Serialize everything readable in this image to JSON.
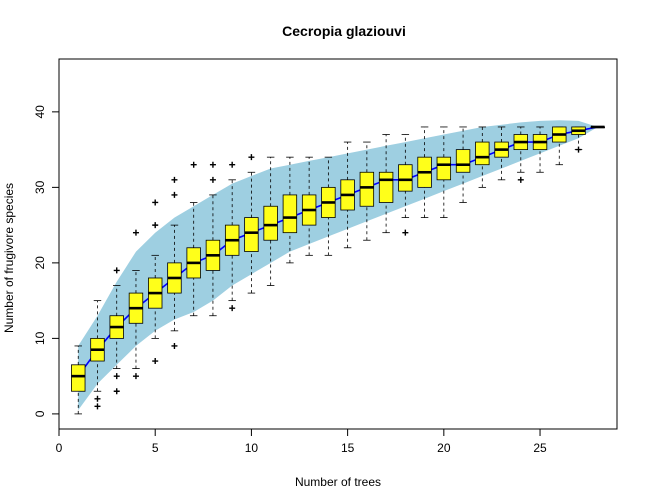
{
  "chart_data": {
    "type": "box",
    "title": "Cecropia glaziouvi",
    "xlabel": "Number of trees",
    "ylabel": "Number of frugivore species",
    "xlim": [
      0,
      29
    ],
    "ylim": [
      -2,
      47
    ],
    "x_ticks": [
      0,
      5,
      10,
      15,
      20,
      25
    ],
    "y_ticks": [
      0,
      10,
      20,
      30,
      40
    ],
    "grid": false,
    "colors": {
      "band": "#9ecfe1",
      "box": "#ffff1a",
      "median_line": "#0000ff"
    },
    "band": {
      "x": [
        1,
        2,
        3,
        4,
        5,
        6,
        7,
        8,
        9,
        10,
        11,
        12,
        13,
        14,
        15,
        16,
        17,
        18,
        19,
        20,
        21,
        22,
        23,
        24,
        25,
        26,
        27,
        28
      ],
      "lower": [
        0.5,
        4,
        6.5,
        9,
        11,
        12.5,
        13.5,
        15,
        17,
        18.5,
        20,
        21.5,
        22.5,
        23.5,
        24.5,
        25.5,
        26.5,
        27.5,
        28.5,
        29.5,
        30.5,
        31.5,
        32.5,
        33.5,
        34.5,
        35.5,
        36.5,
        38
      ],
      "upper": [
        9,
        13,
        17.5,
        21.5,
        24,
        26,
        27.5,
        29,
        30.5,
        31.5,
        32.5,
        33,
        33.5,
        34,
        34.5,
        35,
        35.5,
        36,
        36.5,
        37,
        37.5,
        38,
        38.3,
        38.6,
        38.8,
        38.9,
        38.8,
        38
      ]
    },
    "boxes": [
      {
        "x": 1,
        "whislo": 0,
        "q1": 3,
        "med": 5,
        "q3": 6.5,
        "whishi": 9,
        "fliers": []
      },
      {
        "x": 2,
        "whislo": 3,
        "q1": 7,
        "med": 8.5,
        "q3": 10,
        "whishi": 15,
        "fliers": [
          1,
          2
        ]
      },
      {
        "x": 3,
        "whislo": 6,
        "q1": 10,
        "med": 11.5,
        "q3": 13,
        "whishi": 17,
        "fliers": [
          3,
          5,
          19
        ]
      },
      {
        "x": 4,
        "whislo": 6,
        "q1": 12,
        "med": 14,
        "q3": 16,
        "whishi": 19,
        "fliers": [
          5,
          24
        ]
      },
      {
        "x": 5,
        "whislo": 10,
        "q1": 14,
        "med": 16,
        "q3": 18,
        "whishi": 21,
        "fliers": [
          7,
          25,
          28
        ]
      },
      {
        "x": 6,
        "whislo": 11,
        "q1": 16,
        "med": 18,
        "q3": 20,
        "whishi": 25,
        "fliers": [
          9,
          29,
          31
        ]
      },
      {
        "x": 7,
        "whislo": 13,
        "q1": 18,
        "med": 20,
        "q3": 22,
        "whishi": 28,
        "fliers": [
          33
        ]
      },
      {
        "x": 8,
        "whislo": 13,
        "q1": 19,
        "med": 21,
        "q3": 23,
        "whishi": 29,
        "fliers": [
          31,
          33
        ]
      },
      {
        "x": 9,
        "whislo": 15,
        "q1": 21,
        "med": 23,
        "q3": 25,
        "whishi": 31,
        "fliers": [
          14,
          33
        ]
      },
      {
        "x": 10,
        "whislo": 16,
        "q1": 21.5,
        "med": 24,
        "q3": 26,
        "whishi": 32,
        "fliers": [
          34
        ]
      },
      {
        "x": 11,
        "whislo": 17,
        "q1": 23,
        "med": 25,
        "q3": 27.5,
        "whishi": 34,
        "fliers": []
      },
      {
        "x": 12,
        "whislo": 20,
        "q1": 24,
        "med": 26,
        "q3": 29,
        "whishi": 34,
        "fliers": []
      },
      {
        "x": 13,
        "whislo": 21,
        "q1": 25,
        "med": 27,
        "q3": 29,
        "whishi": 34,
        "fliers": []
      },
      {
        "x": 14,
        "whislo": 21,
        "q1": 26,
        "med": 28,
        "q3": 30,
        "whishi": 34,
        "fliers": []
      },
      {
        "x": 15,
        "whislo": 22,
        "q1": 27,
        "med": 29,
        "q3": 31,
        "whishi": 36,
        "fliers": []
      },
      {
        "x": 16,
        "whislo": 23,
        "q1": 27.5,
        "med": 30,
        "q3": 32,
        "whishi": 36,
        "fliers": []
      },
      {
        "x": 17,
        "whislo": 24,
        "q1": 28,
        "med": 31,
        "q3": 32,
        "whishi": 37,
        "fliers": []
      },
      {
        "x": 18,
        "whislo": 26,
        "q1": 29.5,
        "med": 31,
        "q3": 33,
        "whishi": 37,
        "fliers": [
          24
        ]
      },
      {
        "x": 19,
        "whislo": 26,
        "q1": 30,
        "med": 32,
        "q3": 34,
        "whishi": 38,
        "fliers": []
      },
      {
        "x": 20,
        "whislo": 26,
        "q1": 31,
        "med": 33,
        "q3": 34,
        "whishi": 38,
        "fliers": []
      },
      {
        "x": 21,
        "whislo": 28,
        "q1": 32,
        "med": 33,
        "q3": 35,
        "whishi": 38,
        "fliers": []
      },
      {
        "x": 22,
        "whislo": 30,
        "q1": 33,
        "med": 34,
        "q3": 36,
        "whishi": 38,
        "fliers": []
      },
      {
        "x": 23,
        "whislo": 31,
        "q1": 34,
        "med": 35,
        "q3": 36,
        "whishi": 38,
        "fliers": []
      },
      {
        "x": 24,
        "whislo": 32,
        "q1": 35,
        "med": 36,
        "q3": 37,
        "whishi": 38,
        "fliers": [
          31
        ]
      },
      {
        "x": 25,
        "whislo": 32,
        "q1": 35,
        "med": 36,
        "q3": 37,
        "whishi": 38,
        "fliers": []
      },
      {
        "x": 26,
        "whislo": 33,
        "q1": 36,
        "med": 37,
        "q3": 38,
        "whishi": 38,
        "fliers": []
      },
      {
        "x": 27,
        "whislo": 35,
        "q1": 37,
        "med": 37.5,
        "q3": 38,
        "whishi": 38,
        "fliers": [
          35
        ]
      },
      {
        "x": 28,
        "whislo": 38,
        "q1": 38,
        "med": 38,
        "q3": 38,
        "whishi": 38,
        "fliers": []
      }
    ]
  }
}
